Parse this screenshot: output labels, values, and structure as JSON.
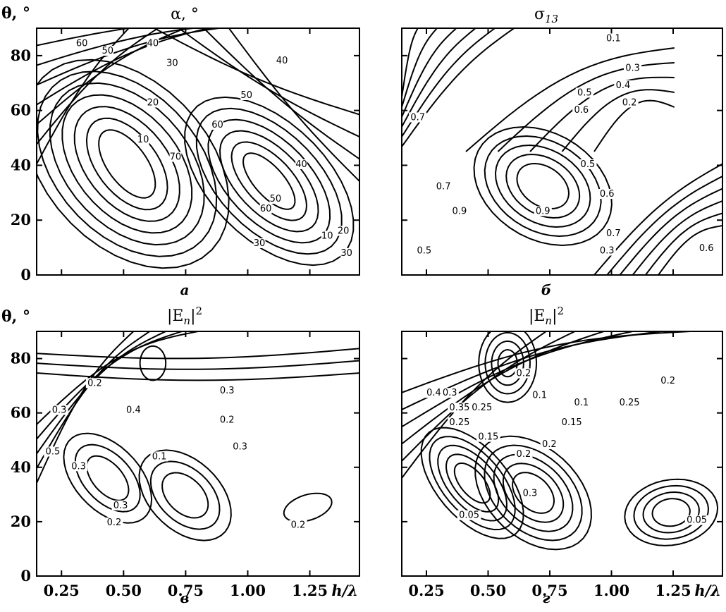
{
  "chart_data": [
    {
      "type": "contour",
      "panel": "a",
      "title": "α, °",
      "ylabel": "θ, °",
      "xlabel": "",
      "xlim": [
        0.15,
        1.45
      ],
      "ylim": [
        0,
        90
      ],
      "yticks": [
        "0",
        "20",
        "40",
        "60",
        "80"
      ],
      "xticks": [],
      "contour_labels": [
        "60",
        "50",
        "40",
        "30",
        "40",
        "20",
        "50",
        "60",
        "10",
        "70",
        "40",
        "50",
        "60",
        "30",
        "10",
        "20",
        "30"
      ]
    },
    {
      "type": "contour",
      "panel": "б",
      "title": "σ",
      "title_sub": "13",
      "xlim": [
        0.15,
        1.45
      ],
      "ylim": [
        0,
        90
      ],
      "xticks": [],
      "yticks": [],
      "contour_labels": [
        "0.1",
        "0.3",
        "0.4",
        "0.5",
        "0.2",
        "0.6",
        "0.7",
        "0.5",
        "0.7",
        "0.9",
        "0.9",
        "0.6",
        "0.7",
        "0.5",
        "0.3",
        "0.6"
      ]
    },
    {
      "type": "contour",
      "panel": "в",
      "title": "|E",
      "title_sub": "n",
      "title_end": "|",
      "title_sup": "2",
      "ylabel": "θ, °",
      "xlabel": "h/λ",
      "xlim": [
        0.15,
        1.45
      ],
      "ylim": [
        0,
        90
      ],
      "xticks": [
        "0.25",
        "0.50",
        "0.75",
        "1.00",
        "1.25"
      ],
      "yticks": [
        "0",
        "20",
        "40",
        "60",
        "80"
      ],
      "contour_labels": [
        "0.2",
        "0.4",
        "0.3",
        "0.3",
        "0.2",
        "0.5",
        "0.3",
        "0.1",
        "0.3",
        "0.3",
        "0.2",
        "0.2"
      ]
    },
    {
      "type": "contour",
      "panel": "г",
      "title": "|E",
      "title_sub": "n",
      "title_end": "|",
      "title_sup": "2",
      "xlabel": "h/λ",
      "xlim": [
        0.15,
        1.45
      ],
      "ylim": [
        0,
        90
      ],
      "xticks": [
        "0.25",
        "0.50",
        "0.75",
        "1.00",
        "1.25"
      ],
      "yticks": [],
      "contour_labels": [
        "0.4",
        "0.3",
        "0.2",
        "0.1",
        "0.15",
        "0.2",
        "0.25",
        "0.35",
        "0.25",
        "0.1",
        "0.15",
        "0.25",
        "0.2",
        "0.2",
        "0.3",
        "0.05",
        "0.05"
      ]
    }
  ]
}
